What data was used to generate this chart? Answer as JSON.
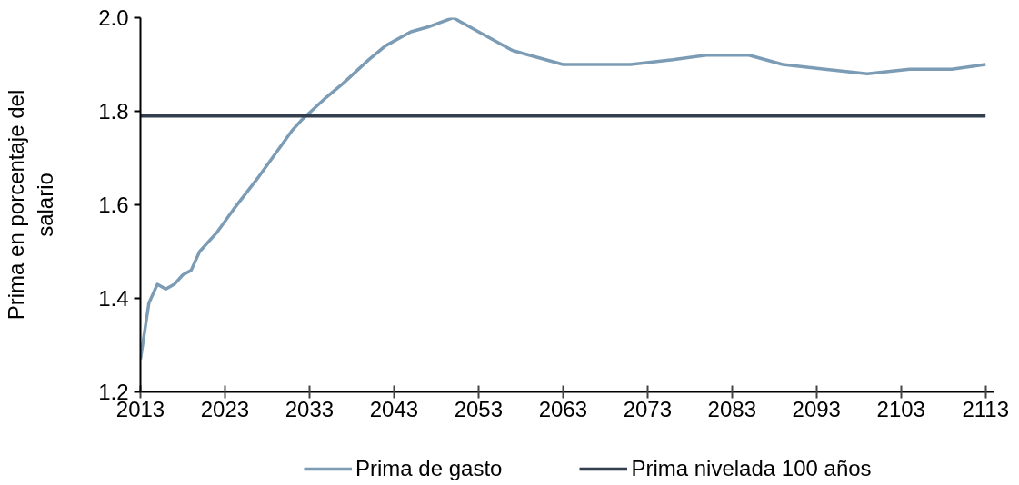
{
  "chart_data": {
    "type": "line",
    "ylabel": "Prima en porcentaje del salario",
    "xlim": [
      2013,
      2114
    ],
    "xticks": [
      2013,
      2023,
      2033,
      2043,
      2053,
      2063,
      2073,
      2083,
      2093,
      2103,
      2113
    ],
    "ylim": [
      1.2,
      2.0
    ],
    "yticks": [
      1.2,
      1.4,
      1.6,
      1.8,
      {
        "value": 2.0,
        "label": "2.0"
      }
    ],
    "grid": false,
    "legend": "bottom",
    "line_style": "solid",
    "series": [
      {
        "name": "Prima de gasto",
        "color": "#7b9cb4",
        "x": [
          2013,
          2014,
          2015,
          2016,
          2017,
          2018,
          2019,
          2020,
          2022,
          2024,
          2027,
          2029,
          2031,
          2032,
          2035,
          2037,
          2040,
          2042,
          2045,
          2047,
          2050,
          2053,
          2057,
          2059,
          2063,
          2067,
          2071,
          2076,
          2080,
          2085,
          2089,
          2094,
          2099,
          2104,
          2109,
          2113
        ],
        "values": [
          1.27,
          1.39,
          1.43,
          1.42,
          1.43,
          1.45,
          1.46,
          1.5,
          1.54,
          1.59,
          1.66,
          1.71,
          1.76,
          1.78,
          1.83,
          1.86,
          1.91,
          1.94,
          1.97,
          1.98,
          2.0,
          1.97,
          1.93,
          1.92,
          1.9,
          1.9,
          1.9,
          1.91,
          1.92,
          1.92,
          1.9,
          1.89,
          1.88,
          1.89,
          1.89,
          1.9
        ]
      },
      {
        "name": "Prima nivelada 100 años",
        "color": "#333f4f",
        "x": [
          2013,
          2113
        ],
        "values": [
          1.79,
          1.79
        ]
      }
    ]
  }
}
